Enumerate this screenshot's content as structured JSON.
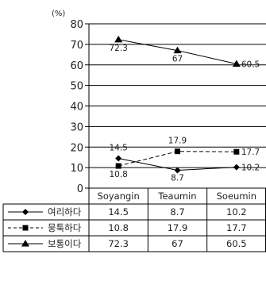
{
  "chart_data": {
    "type": "line",
    "y_unit_label": "(%)",
    "ylim": [
      0,
      80
    ],
    "y_ticks": [
      "0",
      "10",
      "20",
      "30",
      "40",
      "50",
      "60",
      "70",
      "80"
    ],
    "grid": true,
    "categories": [
      "Soyangin",
      "Teaumin",
      "Soeumin"
    ],
    "series": [
      {
        "name": "여리하다",
        "marker": "diamond",
        "dashed": false,
        "values": [
          14.5,
          8.7,
          10.2
        ],
        "labels": [
          "14.5",
          "8.7",
          "10.2"
        ]
      },
      {
        "name": "뭉툭하다",
        "marker": "square",
        "dashed": true,
        "values": [
          10.8,
          17.9,
          17.7
        ],
        "labels": [
          "10.8",
          "17.9",
          "17.7"
        ]
      },
      {
        "name": "보통이다",
        "marker": "triangle",
        "dashed": false,
        "values": [
          72.3,
          67,
          60.5
        ],
        "labels": [
          "72.3",
          "67",
          "60.5"
        ]
      }
    ],
    "legend_position": "data table below the chart"
  }
}
